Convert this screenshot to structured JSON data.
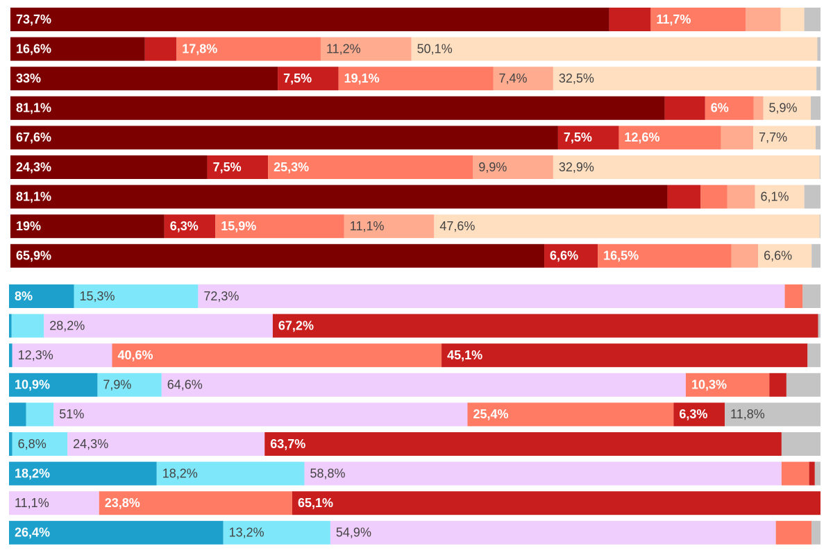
{
  "chart_data": [
    {
      "type": "bar",
      "orientation": "horizontal",
      "stacked": true,
      "normalized": true,
      "colors": [
        "#7c0000",
        "#c81e1e",
        "#ff7b63",
        "#ffab90",
        "#ffdfc0",
        "#c4c4c4"
      ],
      "label_colors": [
        "#ffffff",
        "#ffffff",
        "#ffffff",
        "#444444",
        "#444444",
        "#444444"
      ],
      "rows": [
        {
          "values": [
            73.7,
            5.1,
            11.7,
            4.3,
            2.9,
            2.0
          ],
          "labels": [
            "73,7%",
            "",
            "11,7%",
            "",
            "",
            ""
          ]
        },
        {
          "values": [
            16.6,
            3.9,
            17.8,
            11.2,
            50.1,
            0.4
          ],
          "labels": [
            "16,6%",
            "",
            "17,8%",
            "11,2%",
            "50,1%",
            ""
          ]
        },
        {
          "values": [
            33.0,
            7.5,
            19.1,
            7.4,
            32.5,
            0.5
          ],
          "labels": [
            "33%",
            "7,5%",
            "19,1%",
            "7,4%",
            "32,5%",
            ""
          ]
        },
        {
          "values": [
            81.1,
            5.0,
            6.0,
            1.2,
            5.9,
            1.2
          ],
          "labels": [
            "81,1%",
            "",
            "6%",
            "",
            "5,9%",
            ""
          ]
        },
        {
          "values": [
            67.6,
            7.5,
            12.6,
            4.0,
            7.7,
            0.6
          ],
          "labels": [
            "67,6%",
            "7,5%",
            "12,6%",
            "",
            "7,7%",
            ""
          ]
        },
        {
          "values": [
            24.3,
            7.5,
            25.3,
            9.9,
            32.9,
            0.1
          ],
          "labels": [
            "24,3%",
            "7,5%",
            "25,3%",
            "9,9%",
            "32,9%",
            ""
          ]
        },
        {
          "values": [
            81.1,
            4.1,
            3.3,
            3.4,
            6.1,
            2.0
          ],
          "labels": [
            "81,1%",
            "",
            "",
            "",
            "6,1%",
            ""
          ]
        },
        {
          "values": [
            19.0,
            6.3,
            15.9,
            11.1,
            47.6,
            0.1
          ],
          "labels": [
            "19%",
            "6,3%",
            "15,9%",
            "11,1%",
            "47,6%",
            ""
          ]
        },
        {
          "values": [
            65.9,
            6.6,
            16.5,
            3.3,
            6.6,
            1.1
          ],
          "labels": [
            "65,9%",
            "6,6%",
            "16,5%",
            "",
            "6,6%",
            ""
          ]
        }
      ]
    },
    {
      "type": "bar",
      "orientation": "horizontal",
      "stacked": true,
      "normalized": true,
      "colors": [
        "#1da1cc",
        "#7ee8fa",
        "#efcdfc",
        "#ff7b63",
        "#c81e1e",
        "#c4c4c4"
      ],
      "label_colors": [
        "#ffffff",
        "#444444",
        "#444444",
        "#ffffff",
        "#ffffff",
        "#444444"
      ],
      "rows": [
        {
          "values": [
            8.0,
            15.3,
            72.3,
            2.2,
            0.0,
            2.2
          ],
          "labels": [
            "8%",
            "15,3%",
            "72,3%",
            "",
            "",
            ""
          ]
        },
        {
          "values": [
            0.3,
            4.0,
            28.2,
            0.0,
            67.2,
            0.3
          ],
          "labels": [
            "",
            "",
            "28,2%",
            "",
            "67,2%",
            ""
          ]
        },
        {
          "values": [
            0.4,
            0.0,
            12.3,
            40.6,
            45.1,
            1.6
          ],
          "labels": [
            "",
            "",
            "12,3%",
            "40,6%",
            "45,1%",
            ""
          ]
        },
        {
          "values": [
            10.9,
            7.9,
            64.6,
            10.3,
            2.1,
            4.2
          ],
          "labels": [
            "10,9%",
            "7,9%",
            "64,6%",
            "10,3%",
            "",
            ""
          ]
        },
        {
          "values": [
            2.1,
            3.4,
            51.0,
            25.4,
            6.3,
            11.8
          ],
          "labels": [
            "",
            "",
            "51%",
            "25,4%",
            "6,3%",
            "11,8%"
          ]
        },
        {
          "values": [
            0.4,
            6.8,
            24.3,
            0.0,
            63.7,
            4.8
          ],
          "labels": [
            "",
            "6,8%",
            "24,3%",
            "",
            "63,7%",
            ""
          ]
        },
        {
          "values": [
            18.2,
            18.2,
            58.8,
            3.4,
            0.7,
            0.7
          ],
          "labels": [
            "18,2%",
            "18,2%",
            "58,8%",
            "",
            "",
            ""
          ]
        },
        {
          "values": [
            0.0,
            0.0,
            11.1,
            23.8,
            65.1,
            0.0
          ],
          "labels": [
            "",
            "",
            "11,1%",
            "23,8%",
            "65,1%",
            ""
          ]
        },
        {
          "values": [
            26.4,
            13.2,
            54.9,
            4.4,
            0.0,
            1.1
          ],
          "labels": [
            "26,4%",
            "13,2%",
            "54,9%",
            "",
            "",
            ""
          ]
        }
      ]
    }
  ]
}
